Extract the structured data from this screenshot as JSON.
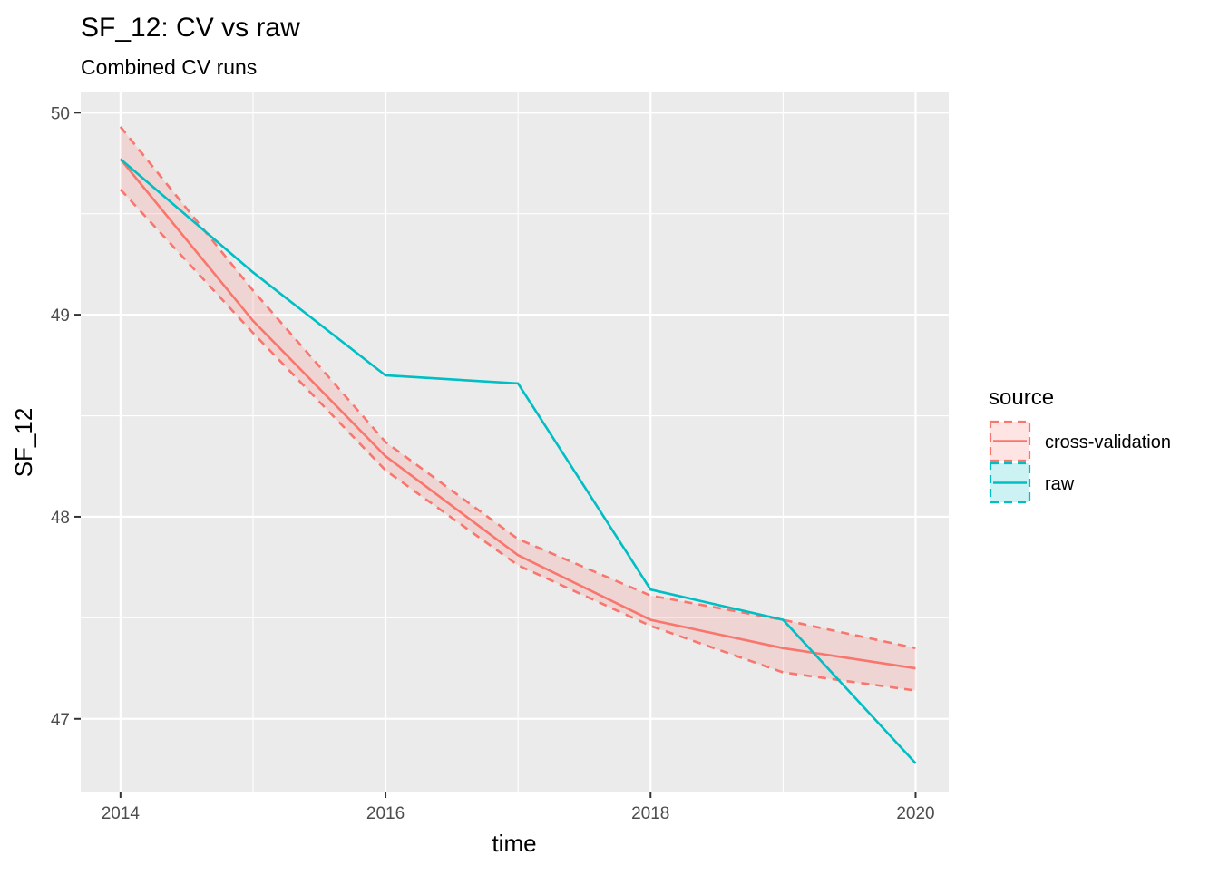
{
  "chart_data": {
    "type": "line",
    "title": "SF_12: CV vs raw",
    "subtitle": "Combined CV runs",
    "xlabel": "time",
    "ylabel": "SF_12",
    "x": [
      2014,
      2015,
      2016,
      2017,
      2018,
      2019,
      2020
    ],
    "xlim": [
      2013.7,
      2020.25
    ],
    "ylim": [
      46.64,
      50.1
    ],
    "xticks": [
      2014,
      2016,
      2018,
      2020
    ],
    "yticks": [
      47,
      48,
      49,
      50
    ],
    "grid": true,
    "legend": {
      "title": "source",
      "position": "right"
    },
    "series": [
      {
        "name": "cross-validation",
        "color": "#F8766D",
        "values": [
          49.77,
          48.97,
          48.3,
          47.81,
          47.49,
          47.35,
          47.25
        ],
        "lower": [
          49.62,
          48.91,
          48.23,
          47.76,
          47.46,
          47.23,
          47.14
        ],
        "upper": [
          49.93,
          49.12,
          48.37,
          47.89,
          47.61,
          47.49,
          47.35
        ]
      },
      {
        "name": "raw",
        "color": "#00BFC4",
        "values": [
          49.77,
          49.21,
          48.7,
          48.66,
          47.64,
          47.49,
          46.78
        ]
      }
    ]
  }
}
